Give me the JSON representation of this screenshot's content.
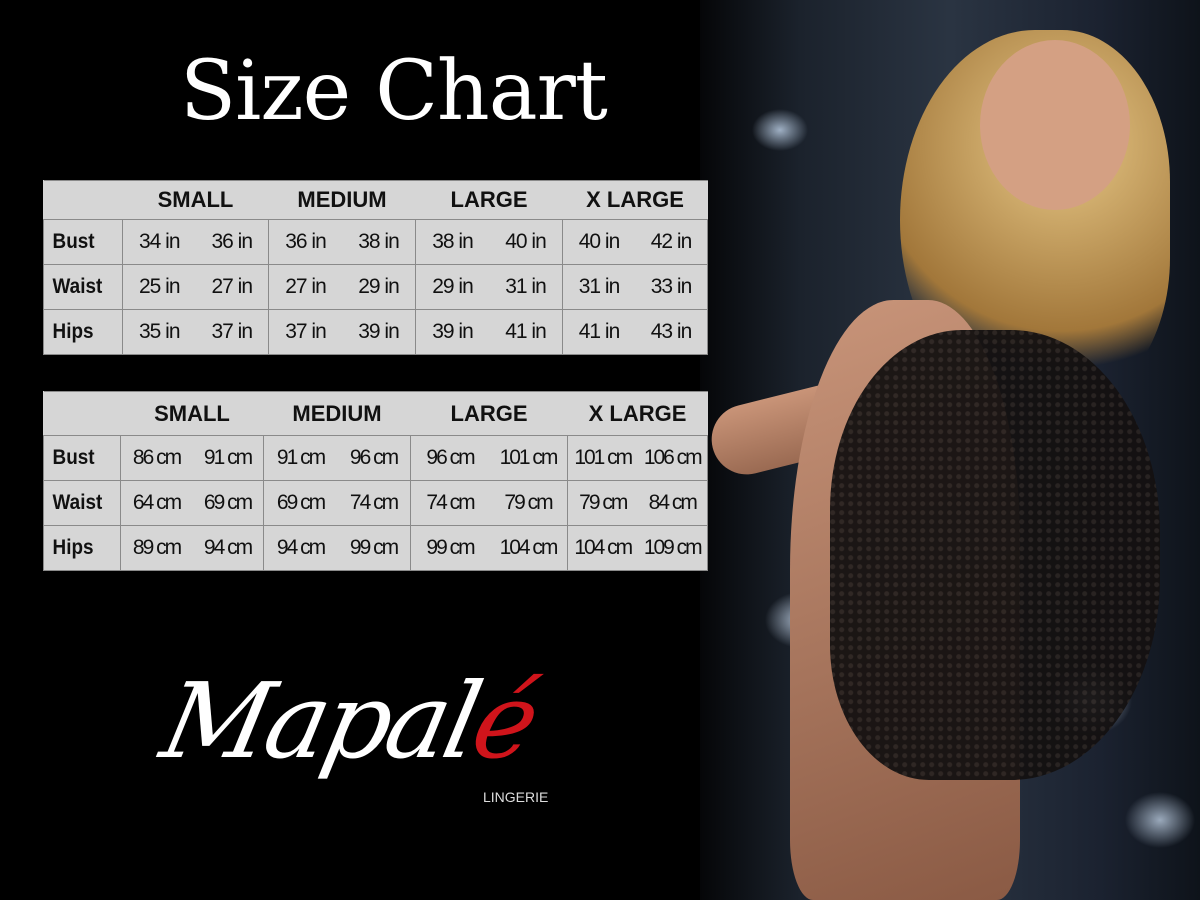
{
  "title": "Size Chart",
  "sizes": [
    "SMALL",
    "MEDIUM",
    "LARGE",
    "X LARGE"
  ],
  "inches_table": {
    "rows": [
      {
        "label": "Bust",
        "values": [
          "34 in",
          "36 in",
          "36 in",
          "38 in",
          "38 in",
          "40 in",
          "40 in",
          "42 in"
        ]
      },
      {
        "label": "Waist",
        "values": [
          "25 in",
          "27 in",
          "27 in",
          "29 in",
          "29 in",
          "31 in",
          "31 in",
          "33 in"
        ]
      },
      {
        "label": "Hips",
        "values": [
          "35 in",
          "37 in",
          "37 in",
          "39 in",
          "39 in",
          "41 in",
          "41 in",
          "43 in"
        ]
      }
    ]
  },
  "cm_table": {
    "rows": [
      {
        "label": "Bust",
        "values": [
          "86 cm",
          "91 cm",
          "91 cm",
          "96 cm",
          "96 cm",
          "101 cm",
          "101 cm",
          "106 cm"
        ]
      },
      {
        "label": "Waist",
        "values": [
          "64 cm",
          "69 cm",
          "69 cm",
          "74 cm",
          "74 cm",
          "79 cm",
          "79 cm",
          "84 cm"
        ]
      },
      {
        "label": "Hips",
        "values": [
          "89 cm",
          "94 cm",
          "94 cm",
          "99 cm",
          "99 cm",
          "104 cm",
          "104 cm",
          "109 cm"
        ]
      }
    ]
  },
  "logo": {
    "word": "Mapal",
    "accent": "é",
    "subtitle": "LINGERIE",
    "accent_color": "#d0141b"
  },
  "colors": {
    "background": "#000000",
    "table_bg": "#d6d6d6",
    "table_border": "#8a8a8a"
  }
}
